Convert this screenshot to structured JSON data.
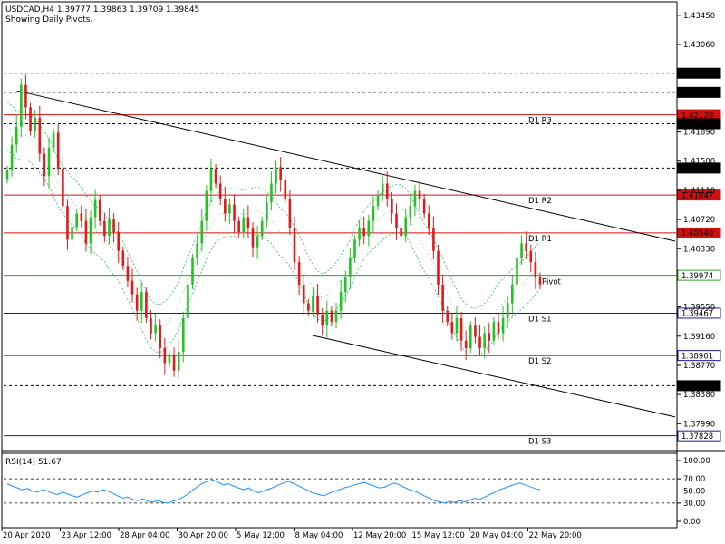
{
  "header": {
    "symbol_line": "USDCAD,H4  1.39777 1.39863 1.39709 1.39845",
    "note": "Showing Daily Pivots."
  },
  "chart_data": {
    "type": "candlestick",
    "price_ylim": [
      1.3763,
      1.4363
    ],
    "price_ticks": [
      "1.43450",
      "1.43060",
      "1.42420",
      "1.41890",
      "1.41500",
      "1.41110",
      "1.40720",
      "1.40330",
      "1.39550",
      "1.39160",
      "1.38770",
      "1.38380",
      "1.37990"
    ],
    "x_tick_labels": [
      "20 Apr 2020",
      "23 Apr 12:00",
      "28 Apr 04:00",
      "30 Apr 20:00",
      "5 May 12:00",
      "8 May 04:00",
      "12 May 20:00",
      "15 May 12:00",
      "20 May 04:00",
      "22 May 20:00"
    ],
    "hlines": [
      {
        "price": 1.42676,
        "label": "1.42676",
        "style": "dashed",
        "color": "#000000",
        "tag": ""
      },
      {
        "price": 1.4242,
        "label": "1.42420",
        "style": "dashed",
        "color": "#000000",
        "tag": ""
      },
      {
        "price": 1.4212,
        "label": "1.42120",
        "style": "solid",
        "color": "#d01010",
        "tag": "D1 R3"
      },
      {
        "price": 1.42,
        "label": "1.42000",
        "style": "dashed",
        "color": "#000000",
        "tag": ""
      },
      {
        "price": 1.41407,
        "label": "1.41407",
        "style": "dashed",
        "color": "#000000",
        "tag": ""
      },
      {
        "price": 1.41047,
        "label": "1.41047",
        "style": "solid",
        "color": "#d01010",
        "tag": "D1 R2"
      },
      {
        "price": 1.4054,
        "label": "1.40540",
        "style": "solid",
        "color": "#d01010",
        "tag": "D1 R1"
      },
      {
        "price": 1.39974,
        "label": "1.39974",
        "style": "solid",
        "color": "#2ca02c",
        "tag": "Pivot"
      },
      {
        "price": 1.39467,
        "label": "1.39467",
        "style": "solid",
        "color": "#1a1aa0",
        "tag": "D1 S1"
      },
      {
        "price": 1.38901,
        "label": "1.38901",
        "style": "solid",
        "color": "#1a1aa0",
        "tag": "D1 S2"
      },
      {
        "price": 1.38498,
        "label": "1.38498",
        "style": "dashed",
        "color": "#000000",
        "tag": ""
      },
      {
        "price": 1.37828,
        "label": "1.37828",
        "style": "solid",
        "color": "#1a1aa0",
        "tag": "D1 S3"
      }
    ],
    "trendlines": [
      {
        "from": [
          0.02,
          1.4244
        ],
        "to": [
          1.0,
          1.4043
        ]
      },
      {
        "from": [
          0.46,
          1.3917
        ],
        "to": [
          1.0,
          1.3808
        ]
      }
    ],
    "closes": [
      1.4138,
      1.4172,
      1.4196,
      1.4252,
      1.4222,
      1.419,
      1.4208,
      1.416,
      1.413,
      1.4168,
      1.4188,
      1.414,
      1.409,
      1.4045,
      1.4062,
      1.408,
      1.407,
      1.404,
      1.4075,
      1.4098,
      1.407,
      1.405,
      1.4072,
      1.4055,
      1.403,
      1.401,
      1.399,
      1.3972,
      1.395,
      1.3975,
      1.394,
      1.392,
      1.393,
      1.39,
      1.388,
      1.389,
      1.387,
      1.3895,
      1.394,
      1.3985,
      1.402,
      1.404,
      1.407,
      1.411,
      1.414,
      1.412,
      1.41,
      1.408,
      1.4092,
      1.407,
      1.4055,
      1.4075,
      1.406,
      1.4035,
      1.405,
      1.407,
      1.4095,
      1.412,
      1.4142,
      1.4125,
      1.41,
      1.406,
      1.4015,
      1.3985,
      1.396,
      1.395,
      1.397,
      1.3945,
      1.393,
      1.395,
      1.3935,
      1.395,
      1.3975,
      1.3995,
      1.402,
      1.4045,
      1.406,
      1.405,
      1.407,
      1.409,
      1.4105,
      1.412,
      1.41,
      1.408,
      1.406,
      1.405,
      1.4075,
      1.409,
      1.411,
      1.41,
      1.408,
      1.406,
      1.403,
      1.3985,
      1.395,
      1.3935,
      1.392,
      1.394,
      1.391,
      1.39,
      1.393,
      1.3915,
      1.39,
      1.392,
      1.391,
      1.3935,
      1.392,
      1.394,
      1.396,
      1.3985,
      1.402,
      1.404,
      1.403,
      1.4015,
      1.3995,
      1.3985
    ],
    "rsi": {
      "label": "RSI(14) 51.67",
      "ylim": [
        0,
        100
      ],
      "ticks": [
        "100.00",
        "70.00",
        "50.00",
        "30.00",
        "0.00"
      ],
      "levels": [
        70,
        30
      ],
      "values": [
        62,
        58,
        55,
        52,
        54,
        50,
        48,
        52,
        50,
        46,
        44,
        48,
        45,
        42,
        40,
        44,
        47,
        50,
        48,
        52,
        50,
        46,
        42,
        38,
        40,
        36,
        34,
        37,
        33,
        32,
        34,
        31,
        30,
        33,
        36,
        40,
        45,
        52,
        58,
        63,
        66,
        68,
        64,
        60,
        62,
        58,
        55,
        52,
        55,
        50,
        47,
        50,
        53,
        56,
        60,
        63,
        66,
        62,
        58,
        54,
        50,
        46,
        44,
        42,
        46,
        49,
        52,
        55,
        57,
        60,
        62,
        64,
        61,
        58,
        55,
        56,
        60,
        63,
        60,
        56,
        52,
        50,
        46,
        42,
        38,
        34,
        32,
        30,
        33,
        31,
        34,
        32,
        35,
        38,
        36,
        40,
        44,
        48,
        52,
        55,
        58,
        61,
        63,
        60,
        57,
        54,
        52
      ]
    }
  }
}
